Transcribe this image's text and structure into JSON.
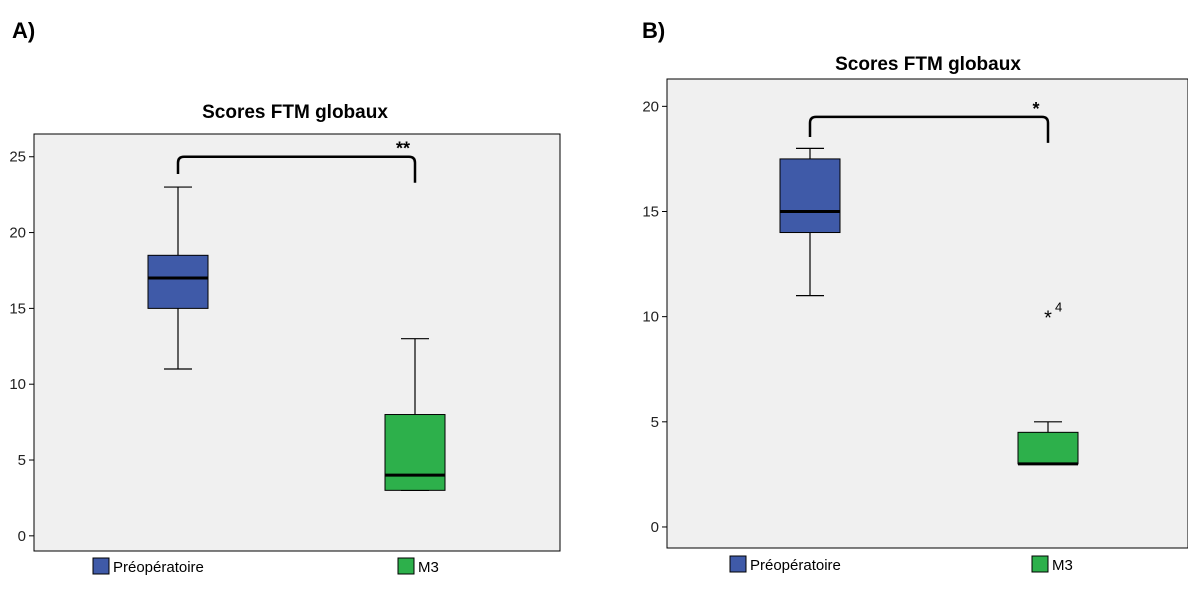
{
  "chart_data": [
    {
      "panel": "A)",
      "type": "box",
      "title": "Scores FTM globaux",
      "xlabel": "",
      "ylabel": "",
      "ylim": [
        -1,
        26.5
      ],
      "yticks": [
        0,
        5,
        10,
        15,
        20,
        25
      ],
      "grid": false,
      "legend_position": "bottom",
      "series": [
        {
          "name": "Préopératoire",
          "color": "#3f5aa8",
          "min": 11,
          "q1": 15,
          "median": 17,
          "q3": 18.5,
          "max": 23,
          "outliers": []
        },
        {
          "name": "M3",
          "color": "#2db04b",
          "min": 3,
          "q1": 3,
          "median": 4,
          "q3": 8,
          "max": 13,
          "outliers": []
        }
      ],
      "significance": {
        "label": "**",
        "level": 25
      }
    },
    {
      "panel": "B)",
      "type": "box",
      "title": "Scores FTM globaux",
      "xlabel": "",
      "ylabel": "",
      "ylim": [
        -1,
        21.3
      ],
      "yticks": [
        0,
        5,
        10,
        15,
        20
      ],
      "grid": false,
      "legend_position": "bottom",
      "series": [
        {
          "name": "Préopératoire",
          "color": "#3f5aa8",
          "min": 11,
          "q1": 14,
          "median": 15,
          "q3": 17.5,
          "max": 18,
          "outliers": []
        },
        {
          "name": "M3",
          "color": "#2db04b",
          "min": 3,
          "q1": 3,
          "median": 3,
          "q3": 4.5,
          "max": 5,
          "outliers": [
            {
              "value": 10,
              "marker": "*",
              "id": "4"
            }
          ]
        }
      ],
      "significance": {
        "label": "*",
        "level": 19.5
      }
    }
  ]
}
